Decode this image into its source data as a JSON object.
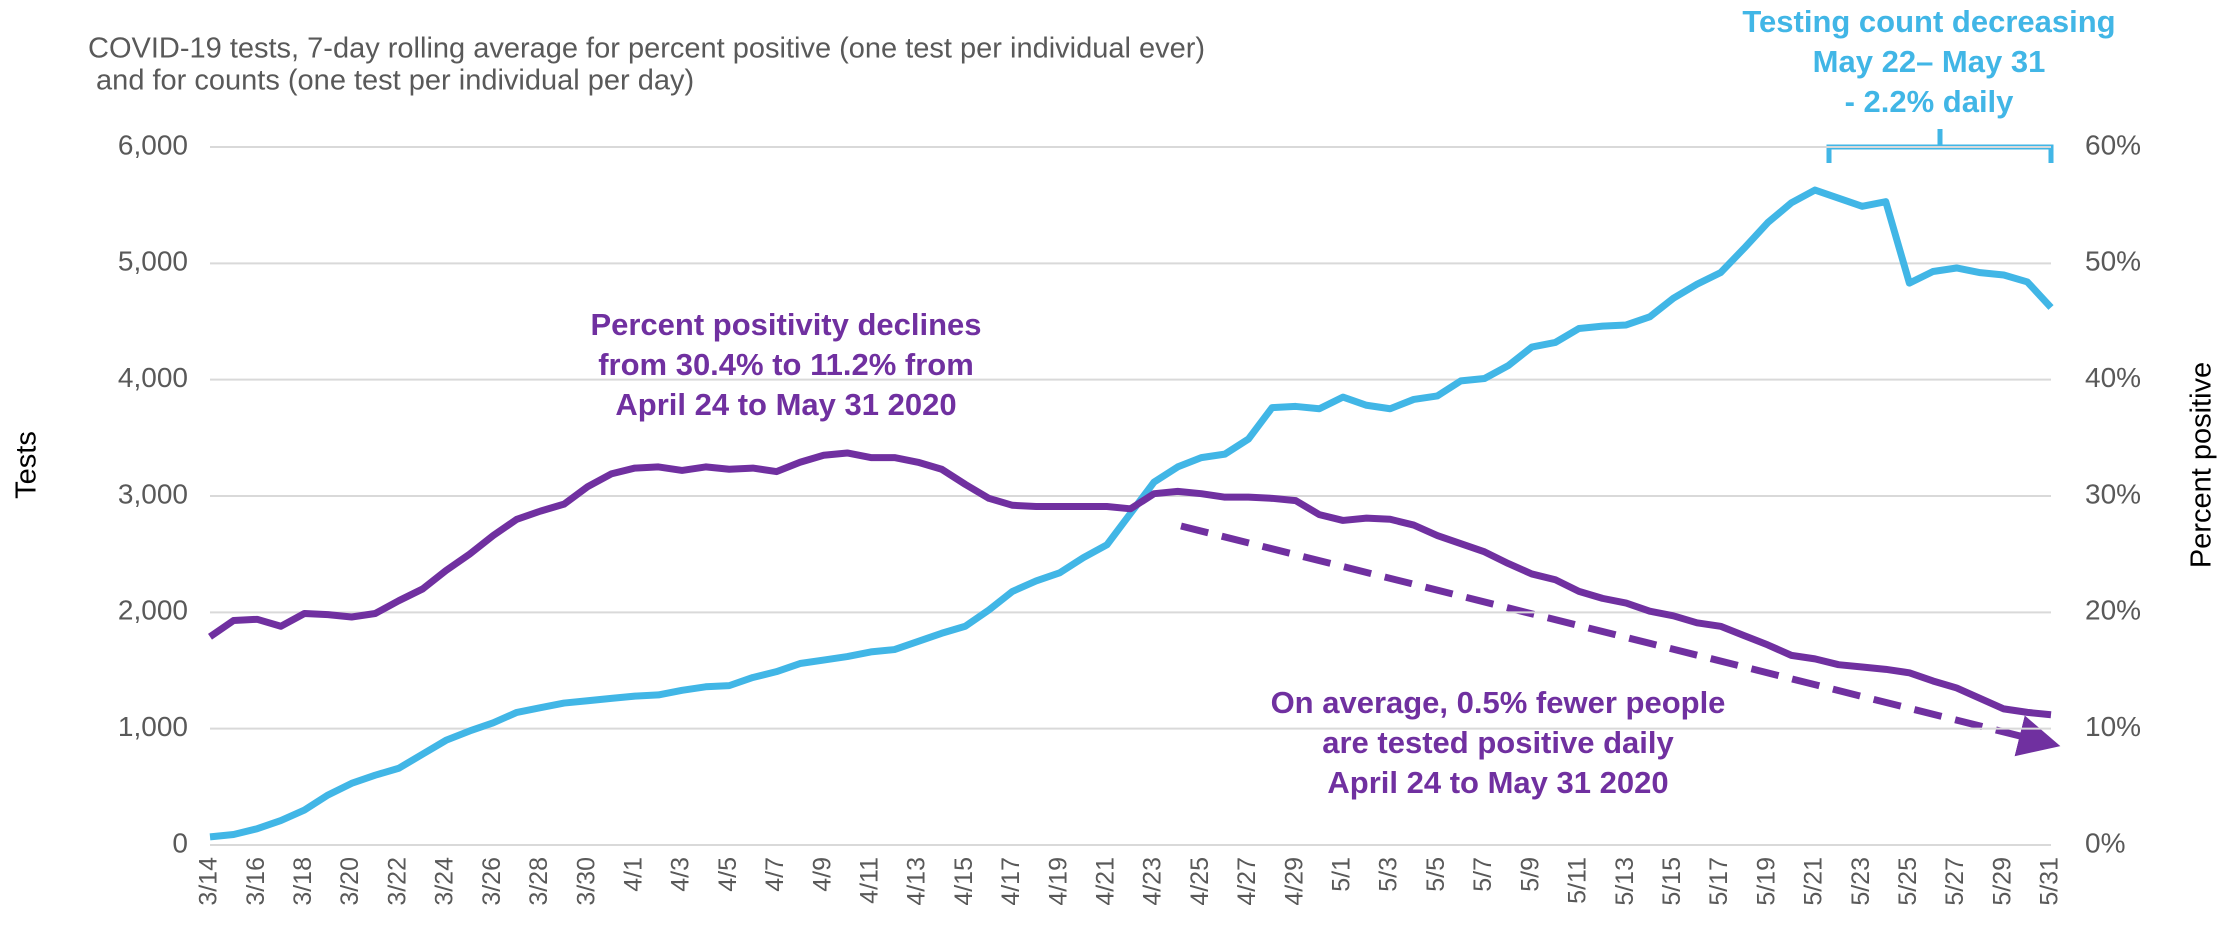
{
  "chart_data": {
    "type": "line",
    "title": [
      "COVID-19 tests, 7-day rolling average for percent positive (one test per individual ever)",
      " and for counts (one test per individual per day)"
    ],
    "y_label": "Tests",
    "y2_label": "Percent positive",
    "annotations": [
      {
        "text": [
          "Percent positivity declines",
          "from 30.4% to 11.2% from",
          "April 24 to May 31 2020"
        ],
        "color": "#7030a0"
      },
      {
        "text": [
          "On average, 0.5% fewer people",
          "are tested positive daily",
          "April 24 to May 31 2020"
        ],
        "color": "#7030a0"
      },
      {
        "text": [
          "Testing count decreasing",
          "May 22– May 31",
          "- 2.2% daily"
        ],
        "color": "#41b6e6"
      }
    ],
    "categories": [
      "3/14",
      null,
      "3/16",
      null,
      "3/18",
      null,
      "3/20",
      null,
      "3/22",
      null,
      "3/24",
      null,
      "3/26",
      null,
      "3/28",
      null,
      "3/30",
      null,
      "4/1",
      null,
      "4/3",
      null,
      "4/5",
      null,
      "4/7",
      null,
      "4/9",
      null,
      "4/11",
      null,
      "4/13",
      null,
      "4/15",
      null,
      "4/17",
      null,
      "4/19",
      null,
      "4/21",
      null,
      "4/23",
      null,
      "4/25",
      null,
      "4/27",
      null,
      "4/29",
      null,
      "5/1",
      null,
      "5/3",
      null,
      "5/5",
      null,
      "5/7",
      null,
      "5/9",
      null,
      "5/11",
      null,
      "5/13",
      null,
      "5/15",
      null,
      "5/17",
      null,
      "5/19",
      null,
      "5/21",
      null,
      "5/23",
      null,
      "5/25",
      null,
      "5/27",
      null,
      "5/29",
      null,
      "5/31"
    ],
    "series": [
      {
        "name": "Tests",
        "color": "#41b6e6",
        "axis": "y",
        "values": [
          70,
          90,
          140,
          210,
          300,
          430,
          530,
          600,
          660,
          780,
          900,
          980,
          1050,
          1140,
          1180,
          1220,
          1240,
          1260,
          1280,
          1290,
          1330,
          1360,
          1370,
          1440,
          1490,
          1560,
          1590,
          1620,
          1660,
          1680,
          1750,
          1820,
          1880,
          2020,
          2180,
          2270,
          2340,
          2470,
          2580,
          2850,
          3120,
          3250,
          3330,
          3360,
          3490,
          3760,
          3770,
          3750,
          3850,
          3780,
          3750,
          3830,
          3860,
          3990,
          4010,
          4120,
          4280,
          4320,
          4440,
          4460,
          4470,
          4540,
          4700,
          4820,
          4920,
          5130,
          5350,
          5520,
          5630,
          5560,
          5490,
          5530,
          4830,
          4930,
          4960,
          4920,
          4900,
          4840,
          4620
        ]
      },
      {
        "name": "Percent positive",
        "color": "#7030a0",
        "axis": "y2",
        "values": [
          17.9,
          19.3,
          19.4,
          18.8,
          19.9,
          19.8,
          19.6,
          19.9,
          21.0,
          22.0,
          23.6,
          25.0,
          26.6,
          28.0,
          28.7,
          29.3,
          30.8,
          31.9,
          32.4,
          32.5,
          32.2,
          32.5,
          32.3,
          32.4,
          32.1,
          32.9,
          33.5,
          33.7,
          33.3,
          33.3,
          32.9,
          32.3,
          31.0,
          29.8,
          29.2,
          29.1,
          29.1,
          29.1,
          29.1,
          28.9,
          30.2,
          30.4,
          30.2,
          29.9,
          29.9,
          29.8,
          29.6,
          28.4,
          27.9,
          28.1,
          28.0,
          27.5,
          26.6,
          25.9,
          25.2,
          24.2,
          23.3,
          22.8,
          21.8,
          21.2,
          20.8,
          20.1,
          19.7,
          19.1,
          18.8,
          18.0,
          17.2,
          16.3,
          16.0,
          15.5,
          15.3,
          15.1,
          14.8,
          14.1,
          13.5,
          12.6,
          11.7,
          11.4,
          11.2
        ]
      }
    ],
    "ylim": [
      0,
      6000
    ],
    "yticks": [
      0,
      {
        "value": 1000,
        "label": "1,000"
      },
      {
        "value": 2000,
        "label": "2,000"
      },
      {
        "value": 3000,
        "label": "3,000"
      },
      {
        "value": 4000,
        "label": "4,000"
      },
      {
        "value": 5000,
        "label": "5,000"
      },
      {
        "value": 6000,
        "label": "6,000"
      }
    ],
    "y2lim": [
      0,
      60
    ],
    "y2ticks": [
      {
        "value": 0,
        "label": "0%"
      },
      {
        "value": 10,
        "label": "10%"
      },
      {
        "value": 20,
        "label": "20%"
      },
      {
        "value": 30,
        "label": "30%"
      },
      {
        "value": 40,
        "label": "40%"
      },
      {
        "value": 50,
        "label": "50%"
      },
      {
        "value": 60,
        "label": "60%"
      }
    ],
    "grid": true
  }
}
